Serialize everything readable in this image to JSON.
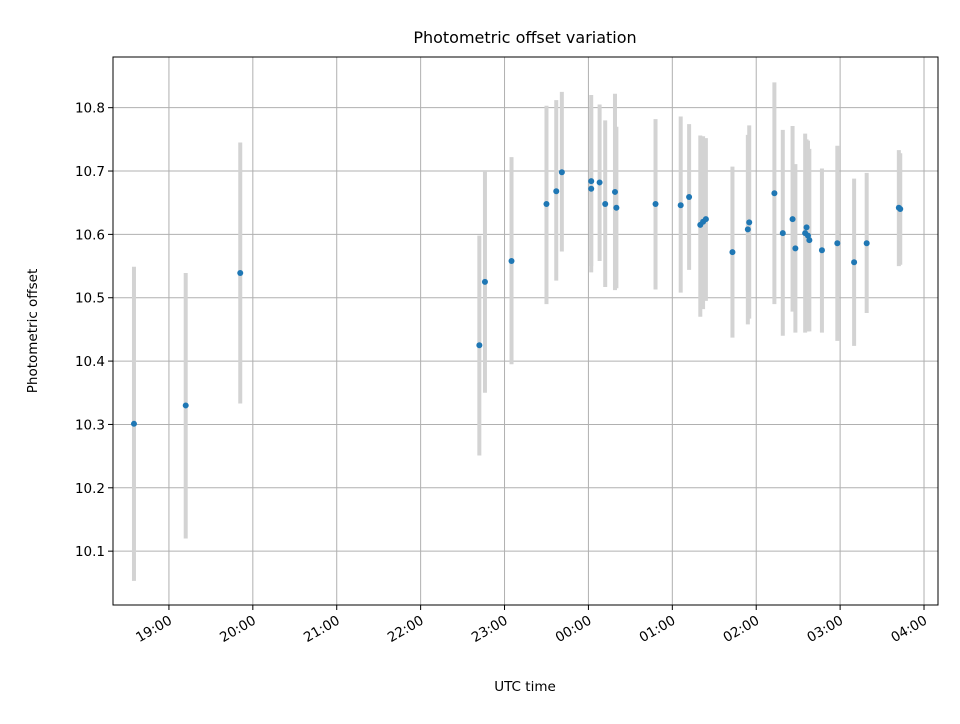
{
  "chart_data": {
    "type": "scatter",
    "title": "Photometric offset variation",
    "xlabel": "UTC time",
    "ylabel": "Photometric offset",
    "x_axis": {
      "kind": "time",
      "range": [
        "18:20",
        "04:10"
      ],
      "ticks": [
        "19:00",
        "20:00",
        "21:00",
        "22:00",
        "23:00",
        "00:00",
        "01:00",
        "02:00",
        "03:00",
        "04:00"
      ]
    },
    "y_axis": {
      "range": [
        10.015,
        10.88
      ],
      "ticks": [
        "10.1",
        "10.2",
        "10.3",
        "10.4",
        "10.5",
        "10.6",
        "10.7",
        "10.8"
      ]
    },
    "grid": true,
    "colors": {
      "point": "#1f77b4",
      "errorbar": "#d3d3d3",
      "grid": "#b0b0b0"
    },
    "points": [
      {
        "time": "18:35",
        "y": 10.301,
        "lo": 10.053,
        "hi": 10.549
      },
      {
        "time": "19:12",
        "y": 10.33,
        "lo": 10.12,
        "hi": 10.539
      },
      {
        "time": "19:51",
        "y": 10.539,
        "lo": 10.333,
        "hi": 10.745
      },
      {
        "time": "22:42",
        "y": 10.425,
        "lo": 10.251,
        "hi": 10.598
      },
      {
        "time": "22:46",
        "y": 10.525,
        "lo": 10.35,
        "hi": 10.7
      },
      {
        "time": "23:05",
        "y": 10.558,
        "lo": 10.395,
        "hi": 10.722
      },
      {
        "time": "23:30",
        "y": 10.648,
        "lo": 10.49,
        "hi": 10.803
      },
      {
        "time": "23:37",
        "y": 10.668,
        "lo": 10.527,
        "hi": 10.812
      },
      {
        "time": "23:41",
        "y": 10.698,
        "lo": 10.573,
        "hi": 10.825
      },
      {
        "time": "00:02",
        "y": 10.684,
        "lo": 10.54,
        "hi": 10.82
      },
      {
        "time": "00:02",
        "y": 10.672,
        "lo": 10.55,
        "hi": 10.8
      },
      {
        "time": "00:08",
        "y": 10.682,
        "lo": 10.558,
        "hi": 10.805
      },
      {
        "time": "00:12",
        "y": 10.648,
        "lo": 10.517,
        "hi": 10.78
      },
      {
        "time": "00:19",
        "y": 10.667,
        "lo": 10.512,
        "hi": 10.822
      },
      {
        "time": "00:20",
        "y": 10.642,
        "lo": 10.515,
        "hi": 10.77
      },
      {
        "time": "00:48",
        "y": 10.648,
        "lo": 10.513,
        "hi": 10.782
      },
      {
        "time": "01:06",
        "y": 10.646,
        "lo": 10.508,
        "hi": 10.786
      },
      {
        "time": "01:12",
        "y": 10.659,
        "lo": 10.544,
        "hi": 10.774
      },
      {
        "time": "01:20",
        "y": 10.615,
        "lo": 10.47,
        "hi": 10.756
      },
      {
        "time": "01:22",
        "y": 10.62,
        "lo": 10.482,
        "hi": 10.755
      },
      {
        "time": "01:24",
        "y": 10.624,
        "lo": 10.495,
        "hi": 10.752
      },
      {
        "time": "01:43",
        "y": 10.572,
        "lo": 10.437,
        "hi": 10.707
      },
      {
        "time": "01:54",
        "y": 10.608,
        "lo": 10.458,
        "hi": 10.757
      },
      {
        "time": "01:55",
        "y": 10.619,
        "lo": 10.467,
        "hi": 10.772
      },
      {
        "time": "02:13",
        "y": 10.665,
        "lo": 10.49,
        "hi": 10.84
      },
      {
        "time": "02:19",
        "y": 10.602,
        "lo": 10.44,
        "hi": 10.765
      },
      {
        "time": "02:26",
        "y": 10.624,
        "lo": 10.478,
        "hi": 10.771
      },
      {
        "time": "02:28",
        "y": 10.578,
        "lo": 10.445,
        "hi": 10.711
      },
      {
        "time": "02:35",
        "y": 10.602,
        "lo": 10.445,
        "hi": 10.759
      },
      {
        "time": "02:36",
        "y": 10.611,
        "lo": 10.45,
        "hi": 10.75
      },
      {
        "time": "02:37",
        "y": 10.598,
        "lo": 10.447,
        "hi": 10.748
      },
      {
        "time": "02:38",
        "y": 10.591,
        "lo": 10.447,
        "hi": 10.735
      },
      {
        "time": "02:47",
        "y": 10.575,
        "lo": 10.445,
        "hi": 10.704
      },
      {
        "time": "02:58",
        "y": 10.586,
        "lo": 10.432,
        "hi": 10.74
      },
      {
        "time": "03:10",
        "y": 10.556,
        "lo": 10.424,
        "hi": 10.688
      },
      {
        "time": "03:19",
        "y": 10.586,
        "lo": 10.476,
        "hi": 10.697
      },
      {
        "time": "03:42",
        "y": 10.642,
        "lo": 10.55,
        "hi": 10.733
      },
      {
        "time": "03:43",
        "y": 10.64,
        "lo": 10.552,
        "hi": 10.728
      }
    ]
  }
}
